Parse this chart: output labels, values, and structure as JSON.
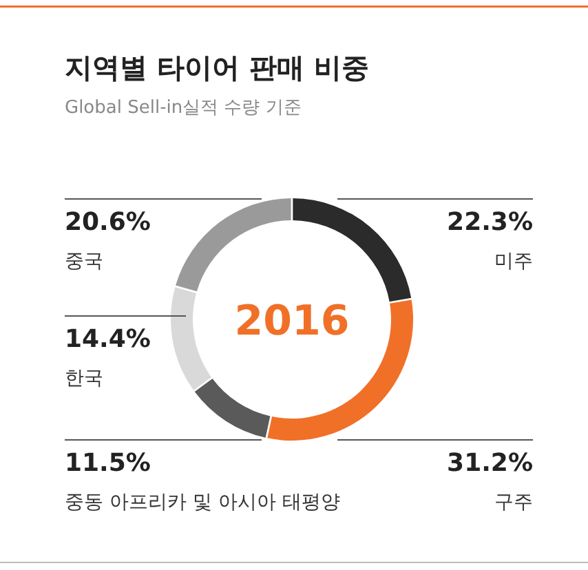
{
  "chart_data": {
    "type": "donut",
    "title": "지역별 타이어 판매 비중",
    "subtitle": "Global Sell-in실적 수량 기준",
    "categories": [
      "미주",
      "구주",
      "중동 아프리카 및 아시아 태평양",
      "한국",
      "중국"
    ],
    "values": [
      22.3,
      31.2,
      11.5,
      14.4,
      20.6
    ],
    "colors": [
      "#2b2b2b",
      "#f07028",
      "#5a5a5a",
      "#d9d9d9",
      "#9a9a9a"
    ],
    "value_labels": [
      "22.3%",
      "31.2%",
      "11.5%",
      "14.4%",
      "20.6%"
    ],
    "annotations": [
      "2016"
    ]
  }
}
